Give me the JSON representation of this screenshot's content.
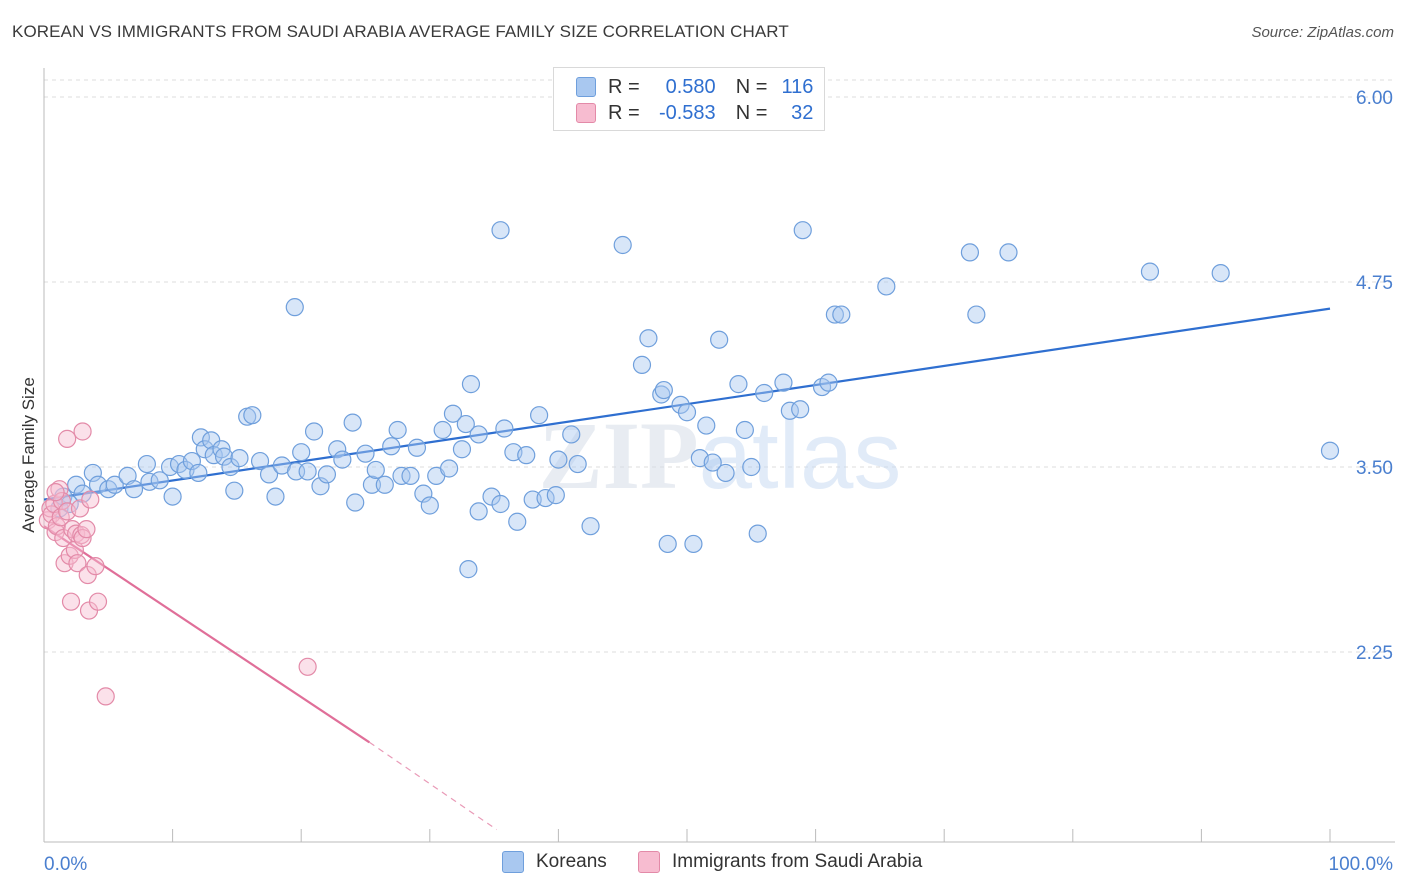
{
  "title": "KOREAN VS IMMIGRANTS FROM SAUDI ARABIA AVERAGE FAMILY SIZE CORRELATION CHART",
  "source": "Source: ZipAtlas.com",
  "watermark": "ZIPatlas",
  "legend": {
    "r_label": "R =",
    "n_label": "N =",
    "rows": [
      {
        "r": "0.580",
        "n": "116",
        "color": "#a9c8f0",
        "border": "#6f9fdc"
      },
      {
        "r": "-0.583",
        "n": "32",
        "color": "#f7bcd0",
        "border": "#e38aa8"
      }
    ]
  },
  "bottom_legend": [
    {
      "label": "Koreans",
      "color": "#a9c8f0",
      "border": "#6f9fdc"
    },
    {
      "label": "Immigrants from Saudi Arabia",
      "color": "#f7bcd0",
      "border": "#e38aa8"
    }
  ],
  "chart_data": {
    "type": "scatter",
    "title": "KOREAN VS IMMIGRANTS FROM SAUDI ARABIA AVERAGE FAMILY SIZE CORRELATION CHART",
    "xlabel": "",
    "ylabel": "Average Family Size",
    "xlim": [
      0,
      100
    ],
    "ylim": [
      1.25,
      6.1
    ],
    "x_tick_labels": [
      "0.0%",
      "100.0%"
    ],
    "y_ticks": [
      2.25,
      3.5,
      4.75,
      6.0
    ],
    "y_tick_labels": [
      "2.25",
      "3.50",
      "4.75",
      "6.00"
    ],
    "grid": "horizontal dashed",
    "series": [
      {
        "name": "Koreans",
        "color": "#6f9fdc",
        "fill": "#a9c8f0",
        "trend": {
          "x": [
            0,
            100
          ],
          "y": [
            3.28,
            4.57
          ],
          "color": "#2f6fd0"
        },
        "points": [
          [
            1.2,
            3.22
          ],
          [
            1.5,
            3.3
          ],
          [
            2.0,
            3.25
          ],
          [
            2.5,
            3.38
          ],
          [
            3.0,
            3.32
          ],
          [
            3.8,
            3.46
          ],
          [
            4.2,
            3.38
          ],
          [
            5.0,
            3.35
          ],
          [
            5.5,
            3.38
          ],
          [
            6.5,
            3.44
          ],
          [
            7.0,
            3.35
          ],
          [
            8.0,
            3.52
          ],
          [
            8.2,
            3.4
          ],
          [
            9.0,
            3.41
          ],
          [
            9.8,
            3.5
          ],
          [
            10.0,
            3.3
          ],
          [
            10.5,
            3.52
          ],
          [
            11.0,
            3.48
          ],
          [
            11.5,
            3.54
          ],
          [
            12.0,
            3.46
          ],
          [
            12.2,
            3.7
          ],
          [
            12.5,
            3.62
          ],
          [
            13.0,
            3.68
          ],
          [
            13.2,
            3.58
          ],
          [
            13.8,
            3.62
          ],
          [
            14.0,
            3.57
          ],
          [
            14.5,
            3.5
          ],
          [
            14.8,
            3.34
          ],
          [
            15.2,
            3.56
          ],
          [
            15.8,
            3.84
          ],
          [
            16.2,
            3.85
          ],
          [
            16.8,
            3.54
          ],
          [
            17.5,
            3.45
          ],
          [
            18.0,
            3.3
          ],
          [
            18.5,
            3.51
          ],
          [
            19.5,
            4.58
          ],
          [
            19.6,
            3.47
          ],
          [
            20.0,
            3.6
          ],
          [
            20.5,
            3.47
          ],
          [
            21.0,
            3.74
          ],
          [
            21.5,
            3.37
          ],
          [
            22.0,
            3.45
          ],
          [
            22.8,
            3.62
          ],
          [
            23.2,
            3.55
          ],
          [
            24.0,
            3.8
          ],
          [
            24.2,
            3.26
          ],
          [
            25.0,
            3.59
          ],
          [
            25.5,
            3.38
          ],
          [
            25.8,
            3.48
          ],
          [
            26.5,
            3.38
          ],
          [
            27.0,
            3.64
          ],
          [
            27.5,
            3.75
          ],
          [
            27.8,
            3.44
          ],
          [
            28.5,
            3.44
          ],
          [
            29.0,
            3.63
          ],
          [
            29.5,
            3.32
          ],
          [
            30.0,
            3.24
          ],
          [
            30.5,
            3.44
          ],
          [
            31.0,
            3.75
          ],
          [
            31.5,
            3.49
          ],
          [
            31.8,
            3.86
          ],
          [
            32.5,
            3.62
          ],
          [
            32.8,
            3.79
          ],
          [
            33.2,
            4.06
          ],
          [
            33.8,
            3.72
          ],
          [
            34.8,
            3.3
          ],
          [
            35.5,
            3.25
          ],
          [
            35.8,
            3.76
          ],
          [
            36.5,
            3.6
          ],
          [
            36.8,
            3.13
          ],
          [
            37.5,
            3.58
          ],
          [
            38.5,
            3.85
          ],
          [
            38.0,
            3.28
          ],
          [
            39.0,
            3.29
          ],
          [
            39.8,
            3.31
          ],
          [
            40.0,
            3.55
          ],
          [
            41.0,
            3.72
          ],
          [
            41.5,
            3.52
          ],
          [
            42.5,
            3.1
          ],
          [
            45.0,
            5.0
          ],
          [
            35.5,
            5.1
          ],
          [
            46.5,
            4.19
          ],
          [
            47.0,
            4.37
          ],
          [
            48.0,
            3.99
          ],
          [
            48.2,
            4.02
          ],
          [
            48.5,
            2.98
          ],
          [
            49.5,
            3.92
          ],
          [
            50.0,
            3.87
          ],
          [
            50.5,
            2.98
          ],
          [
            51.0,
            3.56
          ],
          [
            51.5,
            3.78
          ],
          [
            52.0,
            3.53
          ],
          [
            52.5,
            4.36
          ],
          [
            53.0,
            3.46
          ],
          [
            54.5,
            3.75
          ],
          [
            55.0,
            3.5
          ],
          [
            55.5,
            3.05
          ],
          [
            54.0,
            4.06
          ],
          [
            56.0,
            4.0
          ],
          [
            57.5,
            4.07
          ],
          [
            58.0,
            3.88
          ],
          [
            58.8,
            3.89
          ],
          [
            59.0,
            5.1
          ],
          [
            60.5,
            4.04
          ],
          [
            61.0,
            4.07
          ],
          [
            61.5,
            4.53
          ],
          [
            62.0,
            4.53
          ],
          [
            65.5,
            4.72
          ],
          [
            72.0,
            4.95
          ],
          [
            72.5,
            4.53
          ],
          [
            75.0,
            4.95
          ],
          [
            86.0,
            4.82
          ],
          [
            91.5,
            4.81
          ],
          [
            100.0,
            3.61
          ],
          [
            33.0,
            2.81
          ],
          [
            33.8,
            3.2
          ]
        ]
      },
      {
        "name": "Immigrants from Saudi Arabia",
        "color": "#e38aa8",
        "fill": "#f7bcd0",
        "trend": {
          "x": [
            0,
            25.3
          ],
          "y": [
            3.1,
            1.64
          ],
          "color": "#e06f99",
          "dash_to": [
            35.2,
            1.05
          ]
        },
        "points": [
          [
            0.3,
            3.14
          ],
          [
            0.5,
            3.22
          ],
          [
            0.6,
            3.18
          ],
          [
            0.8,
            3.25
          ],
          [
            0.9,
            3.06
          ],
          [
            1.0,
            3.1
          ],
          [
            1.2,
            3.35
          ],
          [
            1.3,
            3.16
          ],
          [
            1.4,
            3.27
          ],
          [
            1.5,
            3.02
          ],
          [
            1.6,
            2.85
          ],
          [
            1.8,
            3.2
          ],
          [
            1.8,
            3.69
          ],
          [
            2.0,
            2.9
          ],
          [
            2.1,
            2.59
          ],
          [
            2.2,
            3.08
          ],
          [
            2.4,
            2.94
          ],
          [
            2.5,
            3.05
          ],
          [
            2.6,
            2.85
          ],
          [
            2.8,
            3.22
          ],
          [
            2.9,
            3.04
          ],
          [
            3.0,
            3.02
          ],
          [
            3.0,
            3.74
          ],
          [
            3.3,
            3.08
          ],
          [
            3.4,
            2.77
          ],
          [
            3.5,
            2.53
          ],
          [
            3.6,
            3.28
          ],
          [
            4.0,
            2.83
          ],
          [
            4.2,
            2.59
          ],
          [
            4.8,
            1.95
          ],
          [
            20.5,
            2.15
          ],
          [
            0.9,
            3.33
          ]
        ]
      }
    ]
  }
}
